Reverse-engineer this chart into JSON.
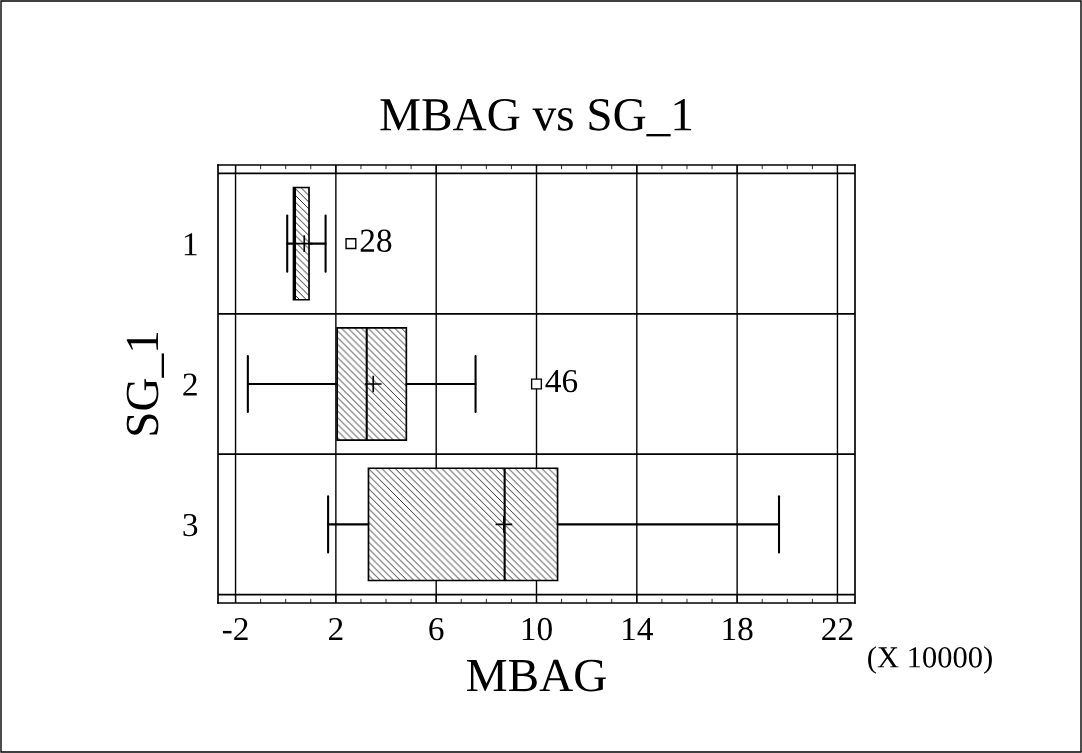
{
  "chart_data": {
    "type": "box",
    "title": "MBAG vs SG_1",
    "xlabel": "MBAG",
    "ylabel": "SG_1",
    "orientation": "horizontal",
    "categories": [
      "1",
      "2",
      "3"
    ],
    "boxes": [
      {
        "low": 0.06,
        "q1": 0.31,
        "median": 0.37,
        "q3": 0.93,
        "high": 1.59,
        "mean": 0.74,
        "outliers": [
          2.6
        ]
      },
      {
        "low": -1.51,
        "q1": 2.05,
        "median": 3.23,
        "q3": 4.81,
        "high": 7.57,
        "mean": 3.49,
        "outliers": [
          10.0
        ]
      },
      {
        "low": 1.69,
        "q1": 3.3,
        "median": 8.73,
        "q3": 10.84,
        "high": 19.67,
        "mean": 8.7
      }
    ],
    "xlim": [
      -2.7,
      22.7
    ],
    "xticks": [
      -2,
      2,
      6,
      10,
      14,
      18,
      22
    ],
    "grid": true,
    "annotations": [
      "28",
      "46",
      "(X 10000)"
    ]
  }
}
